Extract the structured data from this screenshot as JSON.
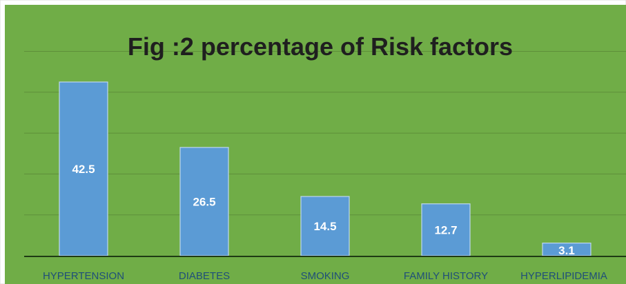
{
  "chart_data": {
    "type": "bar",
    "title": "Fig :2 percentage  of Risk factors",
    "categories": [
      "HYPERTENSION",
      "DIABETES",
      "SMOKING",
      "FAMILY HISTORY",
      "HYPERLIPIDEMIA"
    ],
    "values": [
      42.5,
      26.5,
      14.5,
      12.7,
      3.1
    ],
    "data_labels": [
      "42.5",
      "26.5",
      "14.5",
      "12.7",
      "3.1"
    ],
    "xlabel": "",
    "ylabel": "",
    "ylim": [
      0,
      50
    ],
    "grid": true,
    "legend": "none",
    "colors": {
      "plot_background": "#70ad47",
      "bar_fill": "#5b9bd5",
      "bar_stroke": "#bdd7ee",
      "gridline": "#5e8f3a",
      "axis_line": "#1e3a14",
      "title_color": "#1f1f1f",
      "data_label_color": "#ffffff",
      "category_label_color": "#1f4e79",
      "frame": "#d9d9d9"
    }
  }
}
